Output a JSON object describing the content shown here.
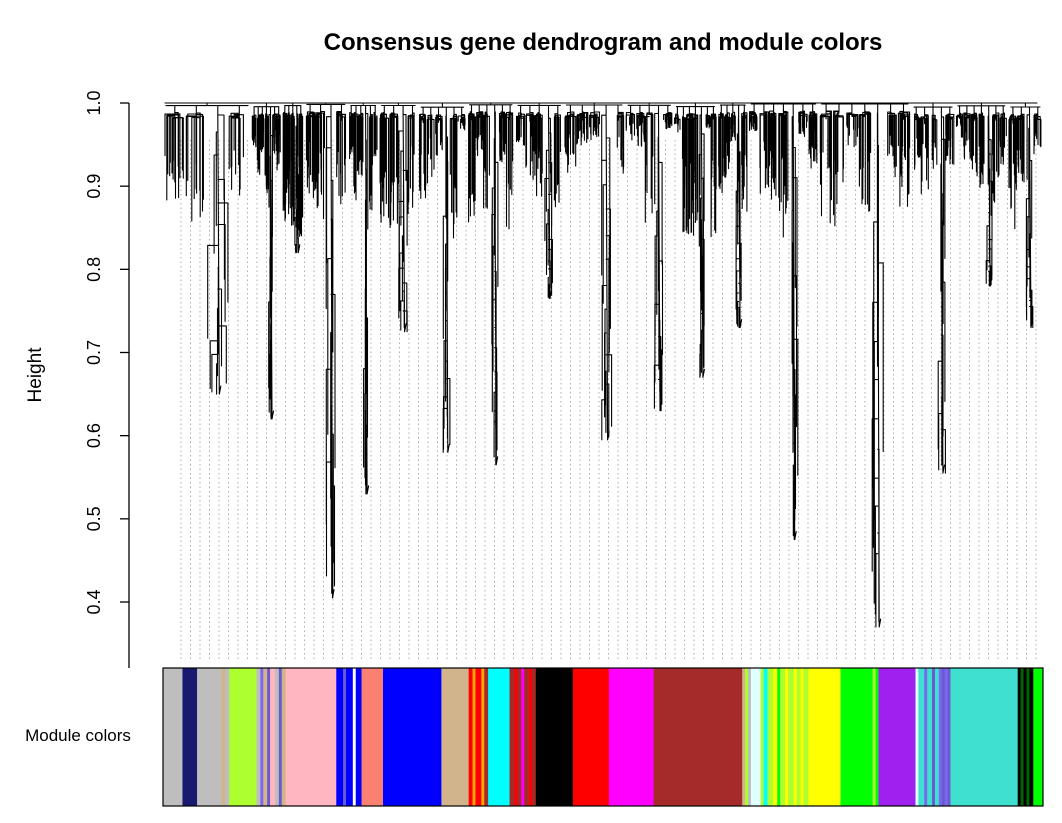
{
  "chart_data": {
    "type": "dendrogram",
    "title": "Consensus gene dendrogram and module colors",
    "ylabel": "Height",
    "xlabel": "",
    "ylim": [
      0.35,
      1.0
    ],
    "y_ticks": [
      0.4,
      0.5,
      0.6,
      0.7,
      0.8,
      0.9,
      1.0
    ],
    "y_tick_labels": [
      "0.4",
      "0.5",
      "0.6",
      "0.7",
      "0.8",
      "0.9",
      "1.0"
    ],
    "grid": true,
    "color_bar_label": "Module colors",
    "branches": [
      {
        "from": 0.0,
        "to": 0.1,
        "min_height": 0.65
      },
      {
        "from": 0.1,
        "to": 0.135,
        "min_height": 0.62
      },
      {
        "from": 0.135,
        "to": 0.16,
        "min_height": 0.82
      },
      {
        "from": 0.16,
        "to": 0.21,
        "min_height": 0.405
      },
      {
        "from": 0.21,
        "to": 0.245,
        "min_height": 0.53
      },
      {
        "from": 0.245,
        "to": 0.29,
        "min_height": 0.725
      },
      {
        "from": 0.29,
        "to": 0.345,
        "min_height": 0.58
      },
      {
        "from": 0.345,
        "to": 0.4,
        "min_height": 0.565
      },
      {
        "from": 0.4,
        "to": 0.455,
        "min_height": 0.765
      },
      {
        "from": 0.455,
        "to": 0.525,
        "min_height": 0.595
      },
      {
        "from": 0.525,
        "to": 0.58,
        "min_height": 0.63
      },
      {
        "from": 0.58,
        "to": 0.63,
        "min_height": 0.67
      },
      {
        "from": 0.63,
        "to": 0.665,
        "min_height": 0.73
      },
      {
        "from": 0.665,
        "to": 0.745,
        "min_height": 0.475
      },
      {
        "from": 0.745,
        "to": 0.85,
        "min_height": 0.37
      },
      {
        "from": 0.85,
        "to": 0.9,
        "min_height": 0.555
      },
      {
        "from": 0.9,
        "to": 0.96,
        "min_height": 0.78
      },
      {
        "from": 0.96,
        "to": 1.0,
        "min_height": 0.73
      }
    ],
    "module_colors": [
      {
        "color": "#bebebe",
        "width": 2.0
      },
      {
        "color": "#191970",
        "width": 1.5
      },
      {
        "color": "#bebebe",
        "width": 2.5
      },
      {
        "color": "#d2b48c",
        "width": 0.4
      },
      {
        "color": "#bebebe",
        "width": 0.4
      },
      {
        "color": "#adff2f",
        "width": 2.8
      },
      {
        "color": "#bebebe",
        "width": 0.4
      },
      {
        "color": "#7b68ee",
        "width": 0.3
      },
      {
        "color": "#d2b48c",
        "width": 0.4
      },
      {
        "color": "#6a5acd",
        "width": 0.3
      },
      {
        "color": "#ffb6c1",
        "width": 0.5
      },
      {
        "color": "#bebebe",
        "width": 0.4
      },
      {
        "color": "#6a5acd",
        "width": 0.3
      },
      {
        "color": "#d2b48c",
        "width": 0.4
      },
      {
        "color": "#ffb6c1",
        "width": 5.2
      },
      {
        "color": "#0000ff",
        "width": 0.7
      },
      {
        "color": "#6a5acd",
        "width": 0.3
      },
      {
        "color": "#0000ff",
        "width": 0.7
      },
      {
        "color": "#ffffff",
        "width": 0.3
      },
      {
        "color": "#0000ff",
        "width": 0.6
      },
      {
        "color": "#fa8072",
        "width": 2.2
      },
      {
        "color": "#0000ff",
        "width": 6.0
      },
      {
        "color": "#d2b48c",
        "width": 2.8
      },
      {
        "color": "#ff0000",
        "width": 0.4
      },
      {
        "color": "#ffa500",
        "width": 0.3
      },
      {
        "color": "#ff0000",
        "width": 0.6
      },
      {
        "color": "#ffa500",
        "width": 0.3
      },
      {
        "color": "#a52a2a",
        "width": 0.4
      },
      {
        "color": "#00ffff",
        "width": 2.2
      },
      {
        "color": "#a52a2a",
        "width": 0.5
      },
      {
        "color": "#ff0000",
        "width": 0.3
      },
      {
        "color": "#a52a2a",
        "width": 0.4
      },
      {
        "color": "#ff00ff",
        "width": 0.3
      },
      {
        "color": "#a52a2a",
        "width": 0.5
      },
      {
        "color": "#ff0000",
        "width": 0.3
      },
      {
        "color": "#a52a2a",
        "width": 0.4
      },
      {
        "color": "#000000",
        "width": 3.8
      },
      {
        "color": "#ff0000",
        "width": 3.7
      },
      {
        "color": "#ff00ff",
        "width": 4.6
      },
      {
        "color": "#a52a2a",
        "width": 9.1
      },
      {
        "color": "#d2b48c",
        "width": 0.3
      },
      {
        "color": "#adff2f",
        "width": 0.3
      },
      {
        "color": "#bebebe",
        "width": 0.3
      },
      {
        "color": "#e0ffff",
        "width": 1.0
      },
      {
        "color": "#adff2f",
        "width": 0.3
      },
      {
        "color": "#00ffff",
        "width": 0.4
      },
      {
        "color": "#adff2f",
        "width": 0.6
      },
      {
        "color": "#ffff00",
        "width": 0.4
      },
      {
        "color": "#00ff00",
        "width": 0.3
      },
      {
        "color": "#adff2f",
        "width": 0.5
      },
      {
        "color": "#ffff00",
        "width": 0.3
      },
      {
        "color": "#adff2f",
        "width": 0.6
      },
      {
        "color": "#ffff00",
        "width": 0.3
      },
      {
        "color": "#adff2f",
        "width": 0.4
      },
      {
        "color": "#ffff00",
        "width": 0.3
      },
      {
        "color": "#adff2f",
        "width": 0.5
      },
      {
        "color": "#ffff00",
        "width": 3.3
      },
      {
        "color": "#00ff00",
        "width": 3.3
      },
      {
        "color": "#adff2f",
        "width": 0.3
      },
      {
        "color": "#00ff00",
        "width": 0.3
      },
      {
        "color": "#a020f0",
        "width": 3.8
      },
      {
        "color": "#e0ffff",
        "width": 0.3
      },
      {
        "color": "#40e0d0",
        "width": 0.6
      },
      {
        "color": "#7b68ee",
        "width": 0.3
      },
      {
        "color": "#40e0d0",
        "width": 0.5
      },
      {
        "color": "#6a5acd",
        "width": 0.3
      },
      {
        "color": "#40e0d0",
        "width": 0.4
      },
      {
        "color": "#7b68ee",
        "width": 0.3
      },
      {
        "color": "#6a5acd",
        "width": 0.3
      },
      {
        "color": "#7b68ee",
        "width": 0.3
      },
      {
        "color": "#6a5acd",
        "width": 0.3
      },
      {
        "color": "#40e0d0",
        "width": 6.9
      },
      {
        "color": "#000000",
        "width": 0.3
      },
      {
        "color": "#006400",
        "width": 0.3
      },
      {
        "color": "#000000",
        "width": 0.3
      },
      {
        "color": "#006400",
        "width": 0.3
      },
      {
        "color": "#000000",
        "width": 0.4
      },
      {
        "color": "#00ff00",
        "width": 1.0
      }
    ]
  }
}
